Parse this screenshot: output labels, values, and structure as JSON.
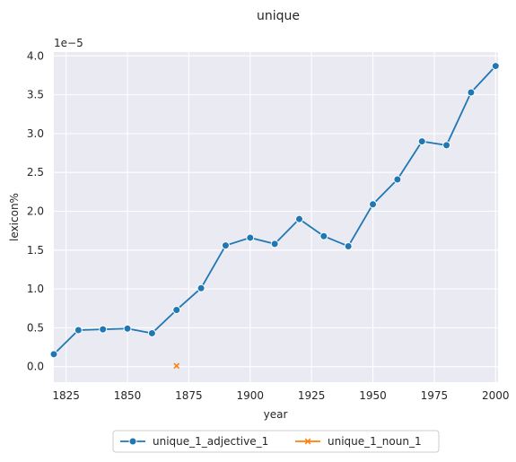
{
  "chart_data": {
    "type": "line",
    "title": "unique",
    "xlabel": "year",
    "ylabel": "lexicon%",
    "y_offset_text": "1e−5",
    "xlim": [
      1820,
      2001
    ],
    "ylim": [
      -2e-06,
      4.05e-05
    ],
    "x_ticks": [
      1825,
      1850,
      1875,
      1900,
      1925,
      1950,
      1975,
      2000
    ],
    "x_tick_labels": [
      "1825",
      "1850",
      "1875",
      "1900",
      "1925",
      "1950",
      "1975",
      "2000"
    ],
    "y_ticks": [
      0,
      5e-06,
      1e-05,
      1.5e-05,
      2e-05,
      2.5e-05,
      3e-05,
      3.5e-05,
      4e-05
    ],
    "y_tick_labels": [
      "0.0",
      "0.5",
      "1.0",
      "1.5",
      "2.0",
      "2.5",
      "3.0",
      "3.5",
      "4.0"
    ],
    "grid": true,
    "legend_position": "bottom-center",
    "series": [
      {
        "name": "unique_1_adjective_1",
        "color": "#1f77b4",
        "marker": "circle",
        "x": [
          1820,
          1830,
          1840,
          1850,
          1860,
          1870,
          1880,
          1890,
          1900,
          1910,
          1920,
          1930,
          1940,
          1950,
          1960,
          1970,
          1980,
          1990,
          2000
        ],
        "y": [
          1.6e-06,
          4.7e-06,
          4.8e-06,
          4.9e-06,
          4.3e-06,
          7.3e-06,
          1.01e-05,
          1.56e-05,
          1.66e-05,
          1.58e-05,
          1.9e-05,
          1.68e-05,
          1.55e-05,
          2.09e-05,
          2.41e-05,
          2.9e-05,
          2.85e-05,
          3.53e-05,
          3.87e-05
        ]
      },
      {
        "name": "unique_1_noun_1",
        "color": "#ff7f0e",
        "marker": "x",
        "x": [
          1870
        ],
        "y": [
          1e-07
        ]
      }
    ]
  }
}
